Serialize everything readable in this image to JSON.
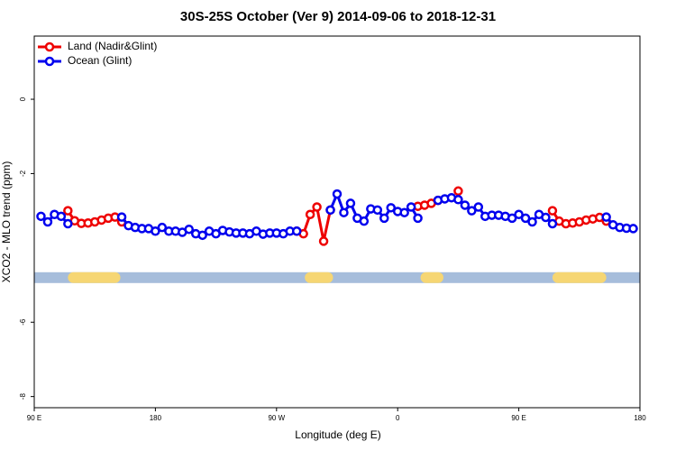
{
  "chart_data": {
    "type": "line",
    "title": "30S-25S October (Ver 9)   2014-09-06 to 2018-12-31",
    "x_label": "Longitude (deg E)",
    "y_label": "XCO2 - MLO trend (ppm)",
    "xlim": [
      90,
      540
    ],
    "ylim": [
      -8.3,
      1.7
    ],
    "xticks": [
      {
        "value": 90,
        "label": "90 E"
      },
      {
        "value": 180,
        "label": "180"
      },
      {
        "value": 270,
        "label": "90 W"
      },
      {
        "value": 360,
        "label": "0"
      },
      {
        "value": 450,
        "label": "90 E"
      },
      {
        "value": 540,
        "label": "180"
      }
    ],
    "yticks": [
      -8,
      -6,
      -2,
      0
    ],
    "legend": "top-left",
    "band_y": -4.8,
    "land_bands": [
      [
        115,
        154
      ],
      [
        291,
        312
      ],
      [
        377,
        394
      ],
      [
        475,
        515
      ]
    ],
    "x": [
      95,
      100,
      105,
      110,
      115,
      120,
      125,
      130,
      135,
      140,
      145,
      150,
      155,
      160,
      165,
      170,
      175,
      180,
      185,
      190,
      195,
      200,
      205,
      210,
      215,
      220,
      225,
      230,
      235,
      240,
      245,
      250,
      255,
      260,
      265,
      270,
      275,
      280,
      285,
      290,
      295,
      300,
      305,
      310,
      315,
      320,
      325,
      330,
      335,
      340,
      345,
      350,
      355,
      360,
      365,
      370,
      375,
      380,
      385,
      390,
      395,
      400,
      405,
      410,
      415,
      420,
      425,
      430,
      435,
      440,
      445,
      450,
      455,
      460,
      465,
      470,
      475,
      480,
      485,
      490,
      495,
      500,
      505,
      510,
      515,
      520,
      525,
      530,
      535
    ],
    "series": [
      {
        "name": "Land (Nadir&Glint)",
        "color": "#ee0000",
        "values": [
          null,
          null,
          null,
          null,
          -3.0,
          -3.27,
          -3.34,
          -3.33,
          -3.3,
          -3.25,
          -3.2,
          -3.17,
          -3.3,
          null,
          null,
          null,
          null,
          null,
          null,
          null,
          null,
          null,
          null,
          null,
          null,
          null,
          null,
          null,
          null,
          null,
          null,
          null,
          null,
          null,
          null,
          null,
          null,
          null,
          -3.55,
          -3.62,
          -3.1,
          -2.9,
          -3.82,
          -2.98,
          null,
          null,
          null,
          null,
          null,
          null,
          null,
          null,
          null,
          null,
          null,
          null,
          -2.88,
          -2.85,
          -2.8,
          -2.72,
          null,
          null,
          -2.47,
          null,
          null,
          null,
          null,
          null,
          null,
          null,
          null,
          null,
          null,
          null,
          null,
          null,
          -3.0,
          -3.28,
          -3.35,
          -3.33,
          -3.3,
          -3.25,
          -3.22,
          -3.18,
          -3.28,
          null,
          null,
          null,
          null
        ]
      },
      {
        "name": "Ocean (Glint)",
        "color": "#0000ee",
        "values": [
          -3.15,
          -3.3,
          -3.1,
          -3.15,
          -3.35,
          null,
          null,
          null,
          null,
          null,
          null,
          null,
          -3.17,
          -3.4,
          -3.45,
          -3.48,
          -3.48,
          -3.55,
          -3.45,
          -3.55,
          -3.55,
          -3.58,
          -3.5,
          -3.62,
          -3.66,
          -3.55,
          -3.62,
          -3.53,
          -3.57,
          -3.6,
          -3.6,
          -3.62,
          -3.55,
          -3.63,
          -3.6,
          -3.6,
          -3.62,
          -3.55,
          -3.55,
          null,
          null,
          null,
          null,
          -2.98,
          -2.55,
          -3.05,
          -2.8,
          -3.2,
          -3.28,
          -2.95,
          -2.98,
          -3.2,
          -2.92,
          -3.02,
          -3.05,
          -2.9,
          -3.2,
          null,
          null,
          -2.72,
          -2.68,
          -2.65,
          -2.7,
          -2.85,
          -3.0,
          -2.9,
          -3.15,
          -3.12,
          -3.12,
          -3.15,
          -3.2,
          -3.1,
          -3.2,
          -3.3,
          -3.1,
          -3.18,
          -3.35,
          null,
          null,
          null,
          null,
          null,
          null,
          null,
          -3.17,
          -3.38,
          -3.45,
          -3.47,
          -3.48
        ]
      }
    ]
  }
}
